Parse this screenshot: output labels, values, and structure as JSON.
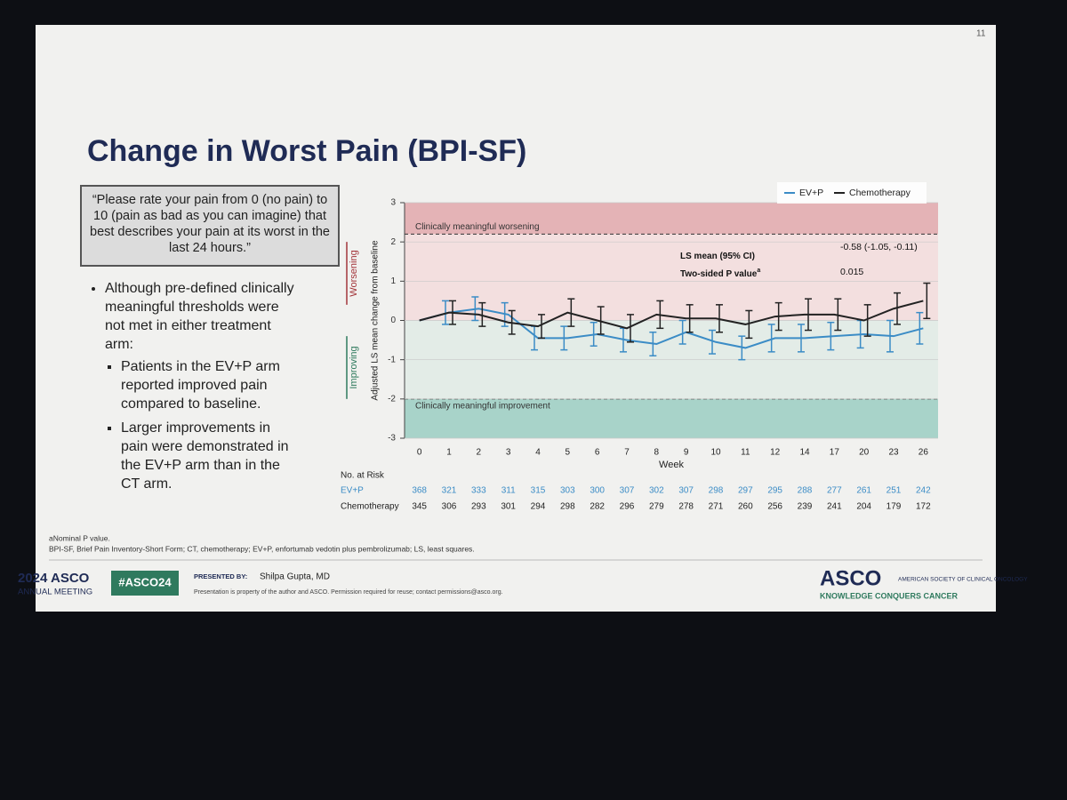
{
  "slide": {
    "page_number": "11",
    "title": "Change in Worst Pain (BPI-SF)",
    "quote": "“Please rate your pain from 0 (no pain) to 10 (pain as bad as you can imagine) that best describes your pain at its worst in the last 24 hours.”",
    "bullet": "Although pre-defined clinically meaningful thresholds were not met in either treatment arm:",
    "sub_bullets": [
      "Patients in the EV+P arm reported improved pain compared to baseline.",
      "Larger improvements in pain were demonstrated in the EV+P arm than in the CT arm."
    ],
    "footnotes": [
      "aNominal P value.",
      "BPI-SF, Brief Pain Inventory-Short Form; CT, chemotherapy; EV+P, enfortumab vedotin plus pembrolizumab; LS, least squares."
    ],
    "footer": {
      "meeting_year": "2024 ASCO",
      "meeting": "ANNUAL MEETING",
      "hashtag": "#ASCO24",
      "presented_by": "PRESENTED BY:",
      "presenter": "Shilpa Gupta, MD",
      "notice": "Presentation is property of the author and ASCO. Permission required for reuse; contact permissions@asco.org.",
      "logo": "ASCO",
      "society": "AMERICAN SOCIETY OF CLINICAL ONCOLOGY",
      "tagline": "KNOWLEDGE CONQUERS CANCER"
    }
  },
  "chart_data": {
    "type": "line",
    "y_label": "Adjusted LS mean change from baseline",
    "x_label": "Week",
    "direction_labels": {
      "up": "Worsening",
      "down": "Improving"
    },
    "categories": [
      "0",
      "1",
      "2",
      "3",
      "4",
      "5",
      "6",
      "7",
      "8",
      "9",
      "10",
      "11",
      "12",
      "14",
      "17",
      "20",
      "23",
      "26"
    ],
    "series": [
      {
        "name": "EV+P",
        "color": "#3b8cc6",
        "values": [
          0,
          0.2,
          0.3,
          0.15,
          -0.45,
          -0.45,
          -0.35,
          -0.5,
          -0.6,
          -0.3,
          -0.55,
          -0.7,
          -0.45,
          -0.45,
          -0.4,
          -0.35,
          -0.4,
          -0.2
        ],
        "errors": [
          0,
          0.3,
          0.3,
          0.3,
          0.3,
          0.3,
          0.3,
          0.3,
          0.3,
          0.3,
          0.3,
          0.3,
          0.35,
          0.35,
          0.35,
          0.35,
          0.4,
          0.4
        ]
      },
      {
        "name": "Chemotherapy",
        "color": "#222222",
        "values": [
          0,
          0.2,
          0.15,
          -0.05,
          -0.15,
          0.2,
          0.0,
          -0.2,
          0.15,
          0.05,
          0.05,
          -0.1,
          0.1,
          0.15,
          0.15,
          0.0,
          0.3,
          0.5
        ],
        "errors": [
          0,
          0.3,
          0.3,
          0.3,
          0.3,
          0.35,
          0.35,
          0.35,
          0.35,
          0.35,
          0.35,
          0.35,
          0.35,
          0.4,
          0.4,
          0.4,
          0.4,
          0.45
        ]
      }
    ],
    "ylim": [
      -3,
      3
    ],
    "yticks": [
      -3,
      -2,
      -1,
      0,
      1,
      2,
      3
    ],
    "grid": true,
    "legend": "top-right",
    "thresholds": [
      {
        "label": "Clinically meaningful worsening",
        "value": 2.2,
        "color": "#e4b3b6"
      },
      {
        "label": "Clinically meaningful improvement",
        "value": -2,
        "color": "#a8d3c9"
      }
    ],
    "stats": [
      {
        "label": "LS mean (95% CI)",
        "value": "-0.58 (-1.05, -0.11)"
      },
      {
        "label": "Two-sided P value",
        "sup": "a",
        "value": "0.015"
      }
    ],
    "risk_table": {
      "title": "No. at Risk",
      "rows": [
        {
          "name": "EV+P",
          "values": [
            368,
            321,
            333,
            311,
            315,
            303,
            300,
            307,
            302,
            307,
            298,
            297,
            295,
            288,
            277,
            261,
            251,
            242
          ]
        },
        {
          "name": "Chemotherapy",
          "values": [
            345,
            306,
            293,
            301,
            294,
            298,
            282,
            296,
            279,
            278,
            271,
            260,
            256,
            239,
            241,
            204,
            179,
            172
          ]
        }
      ]
    }
  }
}
